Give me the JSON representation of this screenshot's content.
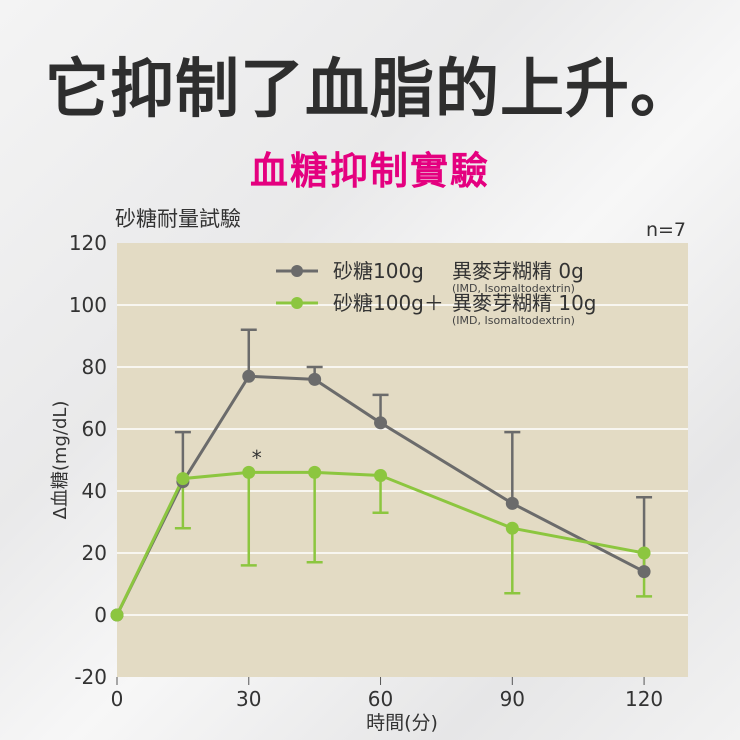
{
  "headline": "它抑制了血脂的上升。",
  "subhead": "血糖抑制實驗",
  "chart_data": {
    "type": "line",
    "title": "砂糖耐量試驗",
    "n_label": "n=7",
    "xlabel": "時間(分)",
    "ylabel": "Δ血糖(mg/dL)",
    "xlim": [
      0,
      130
    ],
    "ylim": [
      -20,
      120
    ],
    "x_ticks": [
      0,
      30,
      60,
      90,
      120
    ],
    "y_ticks": [
      -20,
      0,
      20,
      40,
      60,
      80,
      100,
      120
    ],
    "grid": true,
    "legend_position": "top-right",
    "significance_marker": {
      "x": 30,
      "y": 51,
      "label": "*"
    },
    "series": [
      {
        "name": "砂糖100g　異麥芽糊精 0g",
        "name_line1": "砂糖100g",
        "name_line2": "異麥芽糊精 0g",
        "note": "(IMD, Isomaltodextrin)",
        "color": "#6b6b6b",
        "x": [
          0,
          15,
          30,
          45,
          60,
          90,
          120
        ],
        "y": [
          0,
          43,
          77,
          76,
          62,
          36,
          14
        ],
        "err_upper": [
          null,
          59,
          92,
          80,
          71,
          59,
          38
        ],
        "err_lower": [
          null,
          null,
          null,
          null,
          null,
          null,
          null
        ]
      },
      {
        "name": "砂糖100g＋異麥芽糊精 10g",
        "name_line1": "砂糖100g＋",
        "name_line2": "異麥芽糊精 10g",
        "note": "(IMD, Isomaltodextrin)",
        "color": "#8cc63f",
        "x": [
          0,
          15,
          30,
          45,
          60,
          90,
          120
        ],
        "y": [
          0,
          44,
          46,
          46,
          45,
          28,
          20
        ],
        "err_upper": [
          null,
          null,
          null,
          null,
          null,
          null,
          null
        ],
        "err_lower": [
          null,
          28,
          16,
          17,
          33,
          7,
          6
        ]
      }
    ]
  }
}
